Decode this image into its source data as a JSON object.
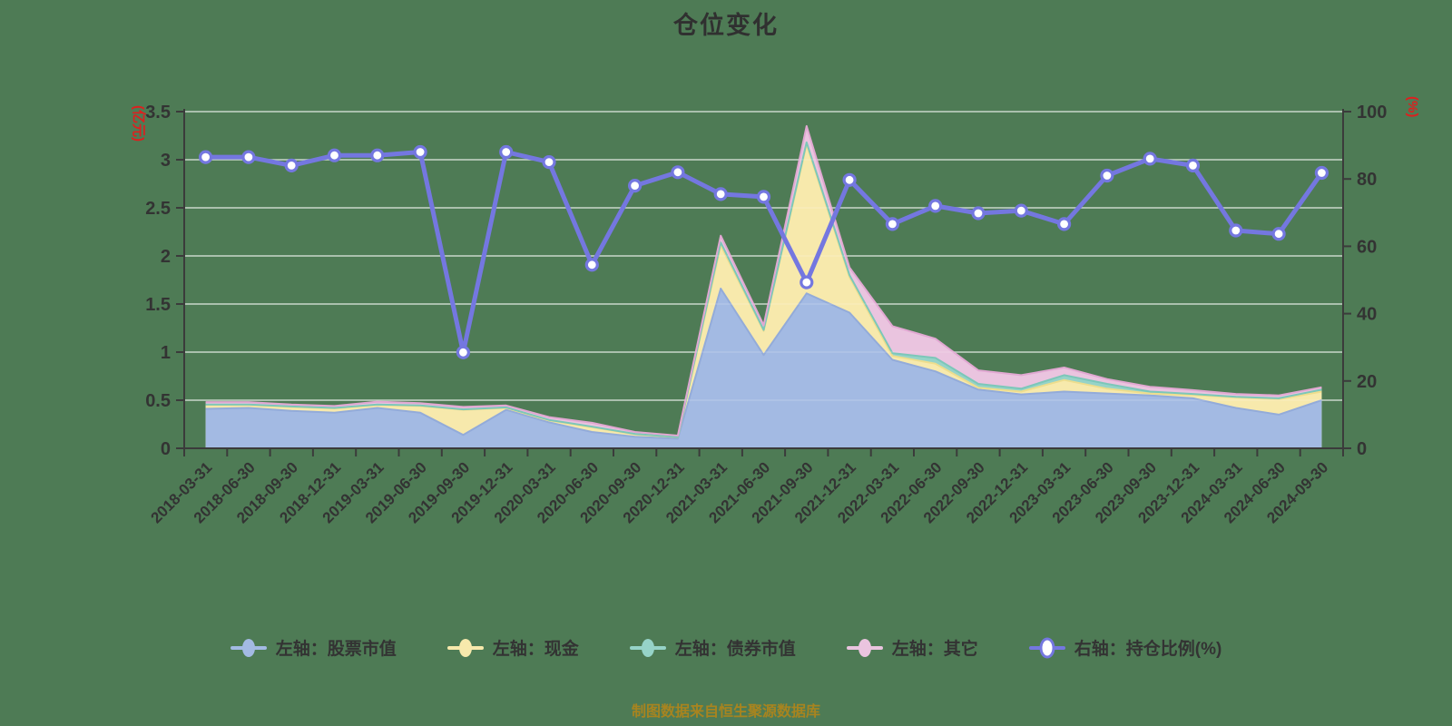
{
  "title": "仓位变化",
  "footer": "制图数据来自恒生聚源数据库",
  "colors": {
    "background": "#4e7b55",
    "stock_fill": "#a3bae3",
    "stock_edge": "#93abd9",
    "cash_fill": "#f7e9ac",
    "cash_edge": "#eedd8d",
    "bond_fill": "#96d3c8",
    "bond_edge": "#7cc7b9",
    "other_fill": "#eac4df",
    "other_edge": "#e1a8d2",
    "ratio_line": "#7477e0",
    "marker_fill": "#ffffff",
    "axis": "#3b3b3b",
    "tick_label": "#333333",
    "unit_label": "#de1f1f",
    "grid": "rgba(255,255,255,0.62)",
    "grid_overlay": "rgba(255,255,255,0.16)",
    "title_color": "#303030",
    "footer_color": "#a8841f"
  },
  "left_axis": {
    "unit": "(亿元)",
    "min": 0,
    "max": 3.5,
    "tick_labels": [
      "3.5",
      "3",
      "2.5",
      "2",
      "1.5",
      "1",
      "0.5",
      "0"
    ],
    "tick_values": [
      3.5,
      3,
      2.5,
      2,
      1.5,
      1,
      0.5,
      0
    ]
  },
  "right_axis": {
    "unit": "(%)",
    "min": 0,
    "max": 100,
    "tick_labels": [
      "100",
      "80",
      "60",
      "40",
      "20",
      "0"
    ],
    "tick_values": [
      100,
      80,
      60,
      40,
      20,
      0
    ]
  },
  "legend": [
    {
      "key": "stock",
      "label": "左轴：股票市值",
      "color": "#a3bae3",
      "marker": "filled"
    },
    {
      "key": "cash",
      "label": "左轴：现金",
      "color": "#f7e9ac",
      "marker": "filled"
    },
    {
      "key": "bond",
      "label": "左轴：债券市值",
      "color": "#96d3c8",
      "marker": "filled"
    },
    {
      "key": "other",
      "label": "左轴：其它",
      "color": "#eac4df",
      "marker": "filled"
    },
    {
      "key": "ratio",
      "label": "右轴：持仓比例(%)",
      "color": "#7477e0",
      "marker": "hollow"
    }
  ],
  "chart_data": {
    "type": "combo",
    "subtype": "stacked-area + line",
    "grid": true,
    "legend_position": "bottom",
    "categories": [
      "2018-03-31",
      "2018-06-30",
      "2018-09-30",
      "2018-12-31",
      "2019-03-31",
      "2019-06-30",
      "2019-09-30",
      "2019-12-31",
      "2020-03-31",
      "2020-06-30",
      "2020-09-30",
      "2020-12-31",
      "2021-03-31",
      "2021-06-30",
      "2021-09-30",
      "2021-12-31",
      "2022-03-31",
      "2022-06-30",
      "2022-09-30",
      "2022-12-31",
      "2023-03-31",
      "2023-06-30",
      "2023-09-30",
      "2023-12-31",
      "2024-03-31",
      "2024-06-30",
      "2024-09-30"
    ],
    "ylim_left": [
      0,
      3.5
    ],
    "ylim_right": [
      0,
      100
    ],
    "series": [
      {
        "name": "左轴：股票市值",
        "type": "area",
        "stack": true,
        "axis": "left",
        "color": "#a3bae3",
        "values": [
          0.41,
          0.42,
          0.39,
          0.37,
          0.42,
          0.37,
          0.14,
          0.4,
          0.27,
          0.17,
          0.12,
          0.1,
          1.66,
          0.97,
          1.61,
          1.41,
          0.92,
          0.8,
          0.61,
          0.56,
          0.59,
          0.57,
          0.55,
          0.52,
          0.42,
          0.35,
          0.5
        ]
      },
      {
        "name": "左轴：现金",
        "type": "area",
        "stack": true,
        "axis": "left",
        "color": "#f7e9ac",
        "values": [
          0.04,
          0.03,
          0.04,
          0.045,
          0.03,
          0.07,
          0.26,
          0.02,
          0.02,
          0.05,
          0.025,
          0.015,
          0.45,
          0.25,
          1.55,
          0.37,
          0.04,
          0.08,
          0.02,
          0.03,
          0.12,
          0.05,
          0.02,
          0.035,
          0.11,
          0.16,
          0.09
        ]
      },
      {
        "name": "左轴：债券市值",
        "type": "area",
        "stack": true,
        "axis": "left",
        "color": "#96d3c8",
        "values": [
          0.005,
          0.005,
          0.005,
          0.005,
          0.005,
          0.005,
          0.005,
          0.005,
          0.005,
          0.005,
          0.005,
          0.002,
          0.03,
          0.01,
          0.02,
          0.02,
          0.03,
          0.06,
          0.04,
          0.03,
          0.05,
          0.05,
          0.02,
          0.01,
          0.005,
          0.01,
          0.02
        ]
      },
      {
        "name": "左轴：其它",
        "type": "area",
        "stack": true,
        "axis": "left",
        "color": "#eac4df",
        "values": [
          0.025,
          0.025,
          0.02,
          0.02,
          0.03,
          0.025,
          0.025,
          0.02,
          0.03,
          0.04,
          0.02,
          0.015,
          0.07,
          0.05,
          0.17,
          0.08,
          0.28,
          0.2,
          0.14,
          0.14,
          0.08,
          0.05,
          0.05,
          0.04,
          0.03,
          0.03,
          0.025
        ]
      },
      {
        "name": "右轴：持仓比例(%)",
        "type": "line",
        "stack": false,
        "axis": "right",
        "color": "#7477e0",
        "values": [
          86.5,
          86.5,
          84,
          87,
          87,
          88,
          28.5,
          88,
          85,
          54.5,
          78,
          82,
          75.5,
          74.7,
          49.3,
          79.7,
          66.6,
          72,
          69.8,
          70.6,
          66.6,
          81,
          86,
          84,
          64.7,
          63.7,
          81.8
        ]
      }
    ]
  }
}
